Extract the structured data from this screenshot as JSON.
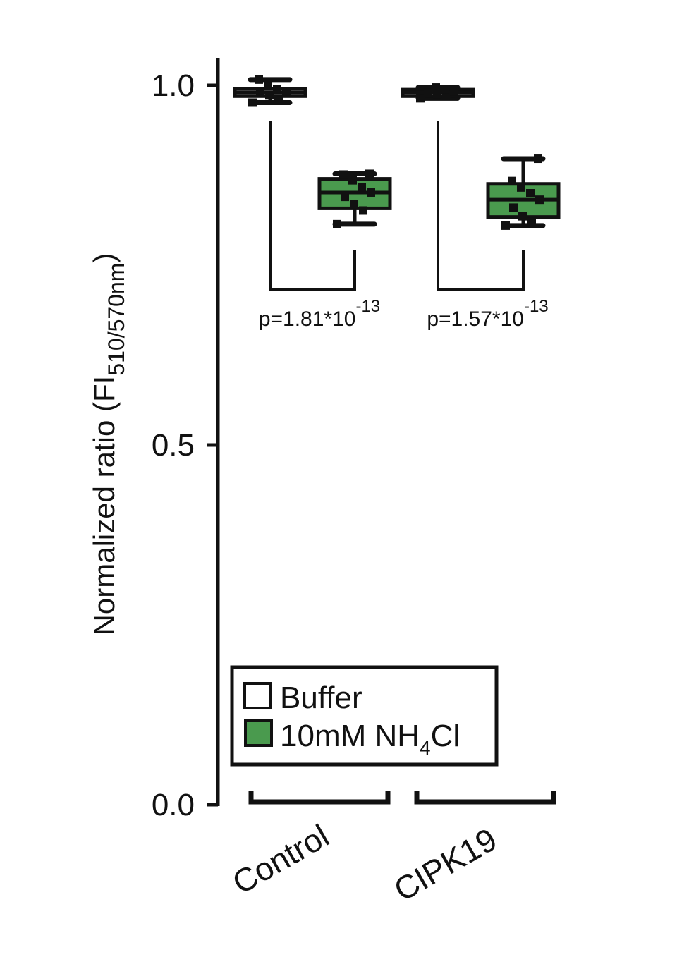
{
  "chart_data": {
    "type": "box",
    "ylabel": "Normalized ratio (FI",
    "ylabel_subscript": "510/570nm",
    "ylabel_close": ")",
    "ylim": [
      0,
      1.04
    ],
    "yticks": [
      "0.0",
      "0.5",
      "1.0"
    ],
    "ytick_values": [
      0,
      0.5,
      1.0
    ],
    "grid": false,
    "legend_placement": "bottom-left",
    "categories": [
      "Control",
      "CIPK19"
    ],
    "series": [
      {
        "name": "Buffer",
        "color": "#ffffff",
        "boxes": [
          {
            "whisker_low": 0.976,
            "q1": 0.985,
            "median": 0.99,
            "q3": 0.995,
            "whisker_high": 1.008,
            "points": [
              0.976,
              0.98,
              0.986,
              0.99,
              0.992,
              0.995,
              1.0,
              1.008
            ]
          },
          {
            "whisker_low": 0.982,
            "q1": 0.985,
            "median": 0.99,
            "q3": 0.994,
            "whisker_high": 0.997,
            "points": [
              0.982,
              0.985,
              0.988,
              0.99,
              0.992,
              0.995,
              0.997
            ]
          }
        ]
      },
      {
        "name": "10mM NH",
        "name_subscript": "4",
        "name_suffix": "Cl",
        "color": "#4a9a4e",
        "boxes": [
          {
            "whisker_low": 0.807,
            "q1": 0.829,
            "median": 0.851,
            "q3": 0.87,
            "whisker_high": 0.877,
            "points": [
              0.807,
              0.826,
              0.835,
              0.845,
              0.851,
              0.858,
              0.868,
              0.876,
              0.877
            ]
          },
          {
            "whisker_low": 0.805,
            "q1": 0.817,
            "median": 0.841,
            "q3": 0.863,
            "whisker_high": 0.898,
            "points": [
              0.805,
              0.81,
              0.818,
              0.83,
              0.841,
              0.85,
              0.858,
              0.867,
              0.898
            ]
          }
        ]
      }
    ],
    "annotations": [
      {
        "group": "Control",
        "text": "p=1.81*10",
        "exponent": "-13"
      },
      {
        "group": "CIPK19",
        "text": "p=1.57*10",
        "exponent": "-13"
      }
    ]
  }
}
